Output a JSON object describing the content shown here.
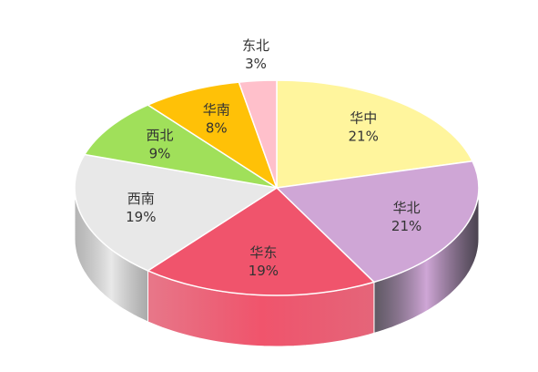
{
  "chart_data": {
    "type": "pie",
    "style": "3d-cylinder",
    "start_angle_deg": 0,
    "direction": "clockwise",
    "slices": [
      {
        "name": "华中",
        "value": 21,
        "label": "21%",
        "color": "#FFF59D",
        "side_color": "#C8BE6E"
      },
      {
        "name": "华北",
        "value": 21,
        "label": "21%",
        "color": "#CFA6D6",
        "side_color": "#2A2230"
      },
      {
        "name": "华东",
        "value": 19,
        "label": "19%",
        "color": "#F0546C",
        "side_color": "#E04A62"
      },
      {
        "name": "西南",
        "value": 19,
        "label": "19%",
        "color": "#E8E8E8",
        "side_color": "#9A9A9A"
      },
      {
        "name": "西北",
        "value": 9,
        "label": "9%",
        "color": "#A0E05A",
        "side_color": "#6EA83A"
      },
      {
        "name": "华南",
        "value": 8,
        "label": "8%",
        "color": "#FFC107",
        "side_color": "#C89200"
      },
      {
        "name": "东北",
        "value": 3,
        "label": "3%",
        "color": "#FFC0CB",
        "side_color": "#D090A0"
      }
    ]
  }
}
